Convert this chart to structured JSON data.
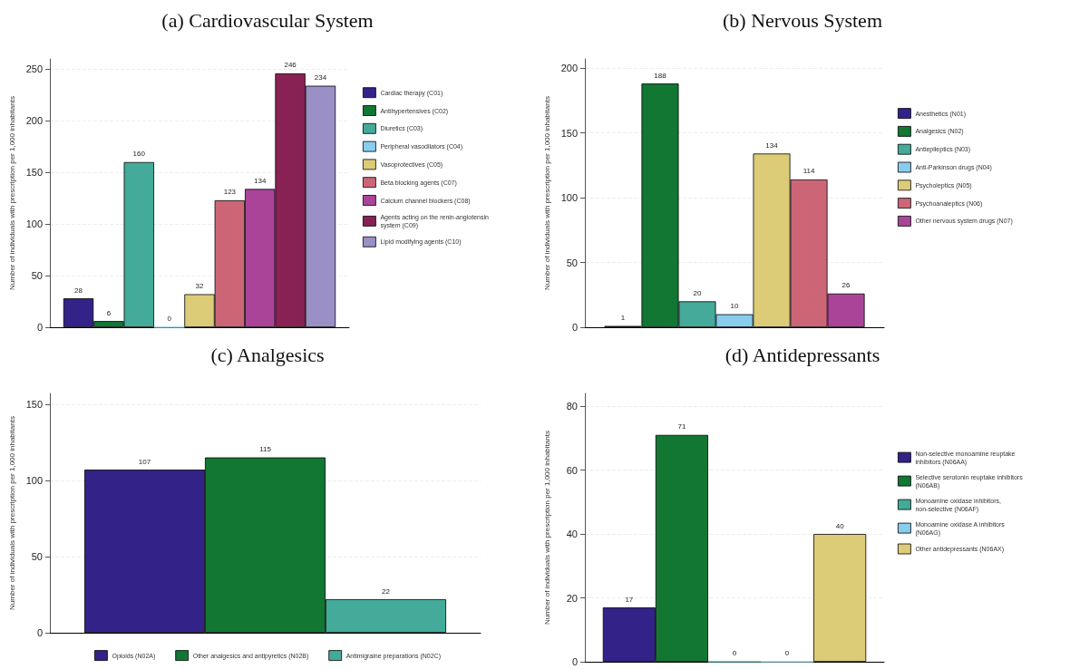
{
  "chart_data": [
    {
      "type": "bar",
      "title": "(a) Cardiovascular System",
      "ylabel": "Number of individuals with prescription per 1,000 inhabitants",
      "categories": [
        null
      ],
      "ylim": [
        0,
        260
      ],
      "yticks": [
        0,
        50,
        100,
        150,
        200,
        250
      ],
      "grid": "y",
      "legend": "right",
      "data_labels": true,
      "series": [
        {
          "name": "Cardiac therapy (C01)",
          "color": "#332288",
          "values": [
            28
          ]
        },
        {
          "name": "Antihypertensives (C02)",
          "color": "#117733",
          "values": [
            6
          ]
        },
        {
          "name": "Diuretics (C03)",
          "color": "#44aa99",
          "values": [
            160
          ]
        },
        {
          "name": "Peripheral vasodilators (C04)",
          "color": "#88ccee",
          "values": [
            0
          ]
        },
        {
          "name": "Vasoprotectives (C05)",
          "color": "#ddcc77",
          "values": [
            32
          ]
        },
        {
          "name": "Beta blocking agents (C07)",
          "color": "#cc6677",
          "values": [
            123
          ]
        },
        {
          "name": "Calcium channel blockers (C08)",
          "color": "#aa4499",
          "values": [
            134
          ]
        },
        {
          "name": "Agents acting on the renin-angiotensin system (C09)",
          "color": "#882255",
          "values": [
            246
          ]
        },
        {
          "name": "Lipid modifying agents (C10)",
          "color": "#9a90c6",
          "values": [
            234
          ]
        }
      ]
    },
    {
      "type": "bar",
      "title": "(b) Nervous System",
      "ylabel": "Number of individuals with prescription per 1,000 inhabitants",
      "categories": [
        null
      ],
      "ylim": [
        0,
        207
      ],
      "yticks": [
        0,
        50,
        100,
        150,
        200
      ],
      "grid": "y",
      "legend": "right",
      "data_labels": true,
      "series": [
        {
          "name": "Anesthetics (N01)",
          "color": "#332288",
          "values": [
            1
          ]
        },
        {
          "name": "Analgesics (N02)",
          "color": "#117733",
          "values": [
            188
          ]
        },
        {
          "name": "Antiepileptics (N03)",
          "color": "#44aa99",
          "values": [
            20
          ]
        },
        {
          "name": "Anti-Parkinson drugs (N04)",
          "color": "#88ccee",
          "values": [
            10
          ]
        },
        {
          "name": "Psycholeptics (N05)",
          "color": "#ddcc77",
          "values": [
            134
          ]
        },
        {
          "name": "Psychoanaleptics (N06)",
          "color": "#cc6677",
          "values": [
            114
          ]
        },
        {
          "name": "Other nervous system drugs (N07)",
          "color": "#aa4499",
          "values": [
            26
          ]
        }
      ]
    },
    {
      "type": "bar",
      "title": "(c) Analgesics",
      "ylabel": "Number of individuals with prescription per 1,000 inhabitants",
      "categories": [
        null
      ],
      "ylim": [
        0,
        157
      ],
      "yticks": [
        0,
        50,
        100,
        150
      ],
      "grid": "y",
      "legend": "bottom",
      "data_labels": true,
      "series": [
        {
          "name": "Opioids (N02A)",
          "color": "#332288",
          "values": [
            107
          ]
        },
        {
          "name": "Other analgesics and antipyretics (N02B)",
          "color": "#117733",
          "values": [
            115
          ]
        },
        {
          "name": "Antimigraine preparations (N02C)",
          "color": "#44aa99",
          "values": [
            22
          ]
        }
      ]
    },
    {
      "type": "bar",
      "title": "(d) Antidepressants",
      "ylabel": "Number of individuals with prescription per 1,000 inhabitants",
      "categories": [
        null
      ],
      "ylim": [
        0,
        84
      ],
      "yticks": [
        0,
        20,
        40,
        60,
        80
      ],
      "grid": "y",
      "legend": "right",
      "data_labels": true,
      "series": [
        {
          "name": "Non-selective monoamine reuptake inhibitors (N06AA)",
          "color": "#332288",
          "values": [
            17
          ]
        },
        {
          "name": "Selective serotonin reuptake inhibitors (N06AB)",
          "color": "#117733",
          "values": [
            71
          ]
        },
        {
          "name": "Monoamine oxidase inhibitors, non-selective (N06AF)",
          "color": "#44aa99",
          "values": [
            0
          ]
        },
        {
          "name": "Monoamine oxidase A inhibitors (N06AG)",
          "color": "#88ccee",
          "values": [
            0
          ]
        },
        {
          "name": "Other antidepressants (N06AX)",
          "color": "#ddcc77",
          "values": [
            40
          ]
        }
      ]
    }
  ]
}
